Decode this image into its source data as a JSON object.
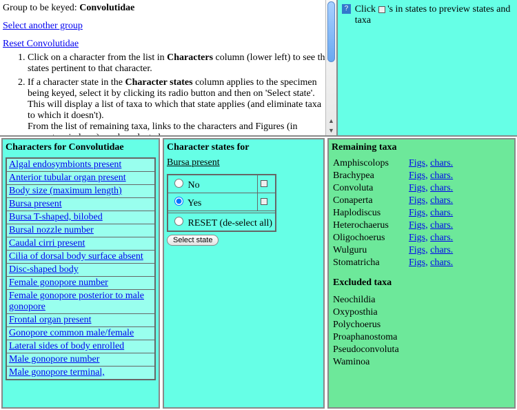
{
  "header": {
    "group_label": "Group to be keyed:",
    "group_name": "Convolutidae",
    "select_another": "Select another group",
    "reset_link": "Reset Convolutidae",
    "instructions": [
      {
        "pre": "Click on a character from the list in ",
        "bold": "Characters",
        "post": " column (lower left) to see the states pertinent to that character."
      },
      {
        "pre": "If a character state in the ",
        "bold": "Character states",
        "post": " column applies to the specimen being keyed, select it by clicking its radio button and then on 'Select state'. This will display a list of taxa to which that state applies (and eliminate taxa to which it doesn't)."
      }
    ],
    "instruction_tail": "From the list of remaining taxa, links to the characters and Figures (in separate windows) can be selected."
  },
  "help_panel": {
    "text_pre": "Click ",
    "text_post": " 's in states to preview states and taxa"
  },
  "characters_panel": {
    "title_pre": "Characters for ",
    "title_group": "Convolutidae",
    "items": [
      "Algal endosymbionts present",
      "Anterior tubular organ present",
      "Body size (maximum length)",
      "Bursa present",
      "Bursa T-shaped, bilobed",
      "Bursal nozzle number",
      "Caudal cirri present",
      "Cilia of dorsal body surface absent",
      "Disc-shaped body",
      "Female gonopore number",
      "Female gonopore posterior to male gonopore",
      "Frontal organ present",
      "Gonopore common male/female",
      "Lateral sides of body enrolled",
      "Male gonopore number",
      "Male gonopore terminal,"
    ]
  },
  "states_panel": {
    "title": "Character states for",
    "current_character": "Bursa present",
    "options": [
      {
        "label": "No",
        "selected": false
      },
      {
        "label": "Yes",
        "selected": true
      }
    ],
    "reset_label": "RESET (de-select all)",
    "select_button": "Select state"
  },
  "taxa_panel": {
    "remaining_title": "Remaining taxa",
    "figs_label": "Figs,",
    "chars_label": "chars.",
    "remaining": [
      "Amphiscolops",
      "Brachypea",
      "Convoluta",
      "Conaperta",
      "Haplodiscus",
      "Heterochaerus",
      "Oligochoerus",
      "Wulguru",
      "Stomatricha"
    ],
    "excluded_title": "Excluded taxa",
    "excluded": [
      "Neochildia",
      "Oxyposthia",
      "Polychoerus",
      "Proaphanostoma",
      "Pseudoconvoluta",
      "Waminoa"
    ]
  }
}
